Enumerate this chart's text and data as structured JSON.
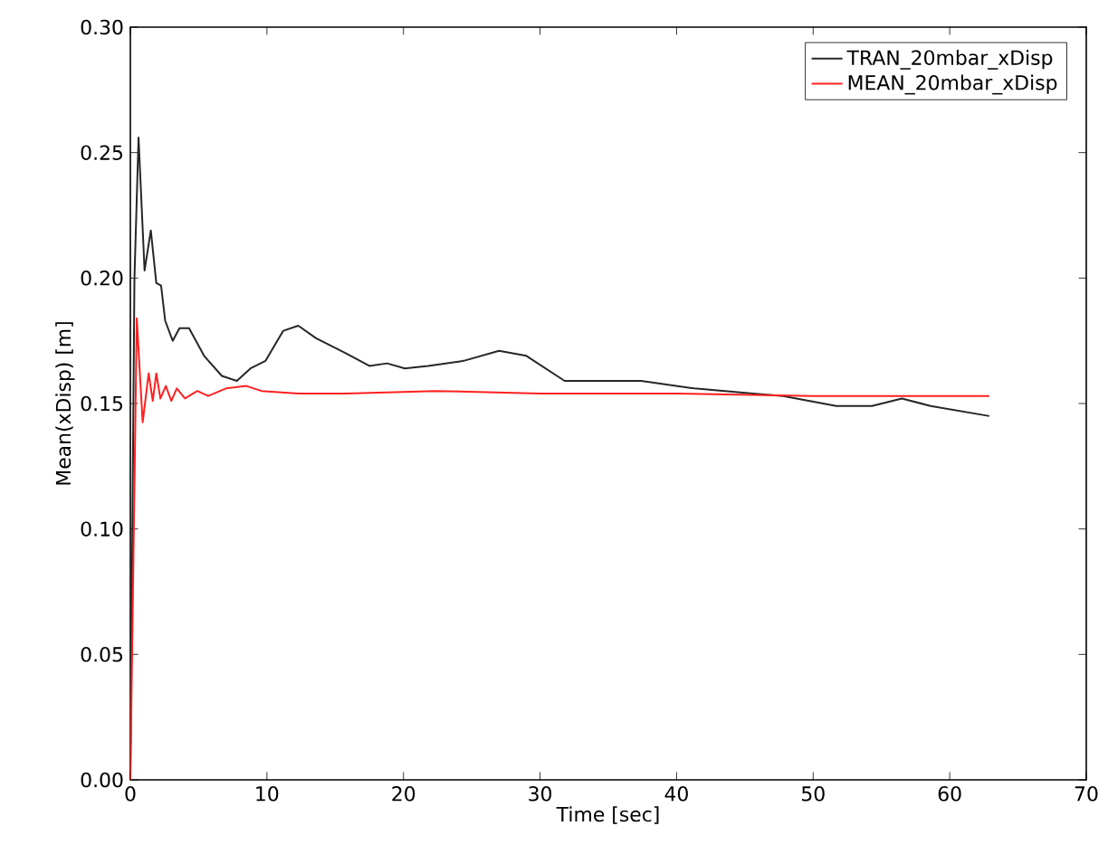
{
  "chart_data": {
    "type": "line",
    "xlabel": "Time [sec]",
    "ylabel": "Mean(xDisp) [m]",
    "xlim": [
      0,
      70
    ],
    "ylim": [
      0,
      0.3
    ],
    "xticks": [
      0,
      10,
      20,
      30,
      40,
      50,
      60,
      70
    ],
    "yticks": [
      {
        "value": 0,
        "label": "0.00"
      },
      {
        "value": 0.05,
        "label": "0.05"
      },
      {
        "value": 0.1,
        "label": "0.10"
      },
      {
        "value": 0.15,
        "label": "0.15"
      },
      {
        "value": 0.2,
        "label": "0.20"
      },
      {
        "value": 0.25,
        "label": "0.25"
      },
      {
        "value": 0.3,
        "label": "0.30"
      }
    ],
    "legend": "top right",
    "grid": false,
    "marker": "none",
    "line_style": "solid",
    "series": [
      {
        "name": "TRAN_20mbar_xDisp",
        "color": "#262626",
        "x": [
          0,
          0.3,
          0.6,
          1.04,
          1.5,
          1.9,
          2.25,
          2.55,
          3.1,
          3.6,
          4.3,
          5.4,
          6.7,
          7.8,
          8.8,
          9.9,
          11.2,
          12.3,
          13.6,
          15.8,
          17.5,
          18.8,
          20.1,
          21.8,
          24.4,
          27.0,
          29.0,
          31.8,
          33.9,
          37.4,
          41.3,
          45.6,
          47.8,
          51.7,
          54.3,
          56.5,
          58.6,
          62.9
        ],
        "values": [
          0,
          0.2,
          0.256,
          0.203,
          0.219,
          0.198,
          0.197,
          0.183,
          0.175,
          0.18,
          0.18,
          0.169,
          0.161,
          0.159,
          0.164,
          0.167,
          0.179,
          0.181,
          0.176,
          0.17,
          0.165,
          0.166,
          0.164,
          0.165,
          0.167,
          0.171,
          0.169,
          0.159,
          0.159,
          0.159,
          0.156,
          0.154,
          0.153,
          0.149,
          0.149,
          0.152,
          0.149,
          0.145
        ]
      },
      {
        "name": "MEAN_20mbar_xDisp",
        "color": "#ff2020",
        "x": [
          0,
          0.47,
          0.9,
          1.34,
          1.64,
          1.9,
          2.2,
          2.6,
          3.0,
          3.4,
          4.0,
          4.9,
          5.7,
          7.0,
          8.5,
          9.6,
          12.3,
          15.8,
          22.3,
          30,
          40,
          50,
          62.9
        ],
        "values": [
          0,
          0.184,
          0.1425,
          0.162,
          0.151,
          0.162,
          0.152,
          0.157,
          0.151,
          0.156,
          0.152,
          0.155,
          0.153,
          0.156,
          0.157,
          0.155,
          0.154,
          0.154,
          0.155,
          0.154,
          0.154,
          0.153,
          0.153
        ]
      }
    ]
  }
}
